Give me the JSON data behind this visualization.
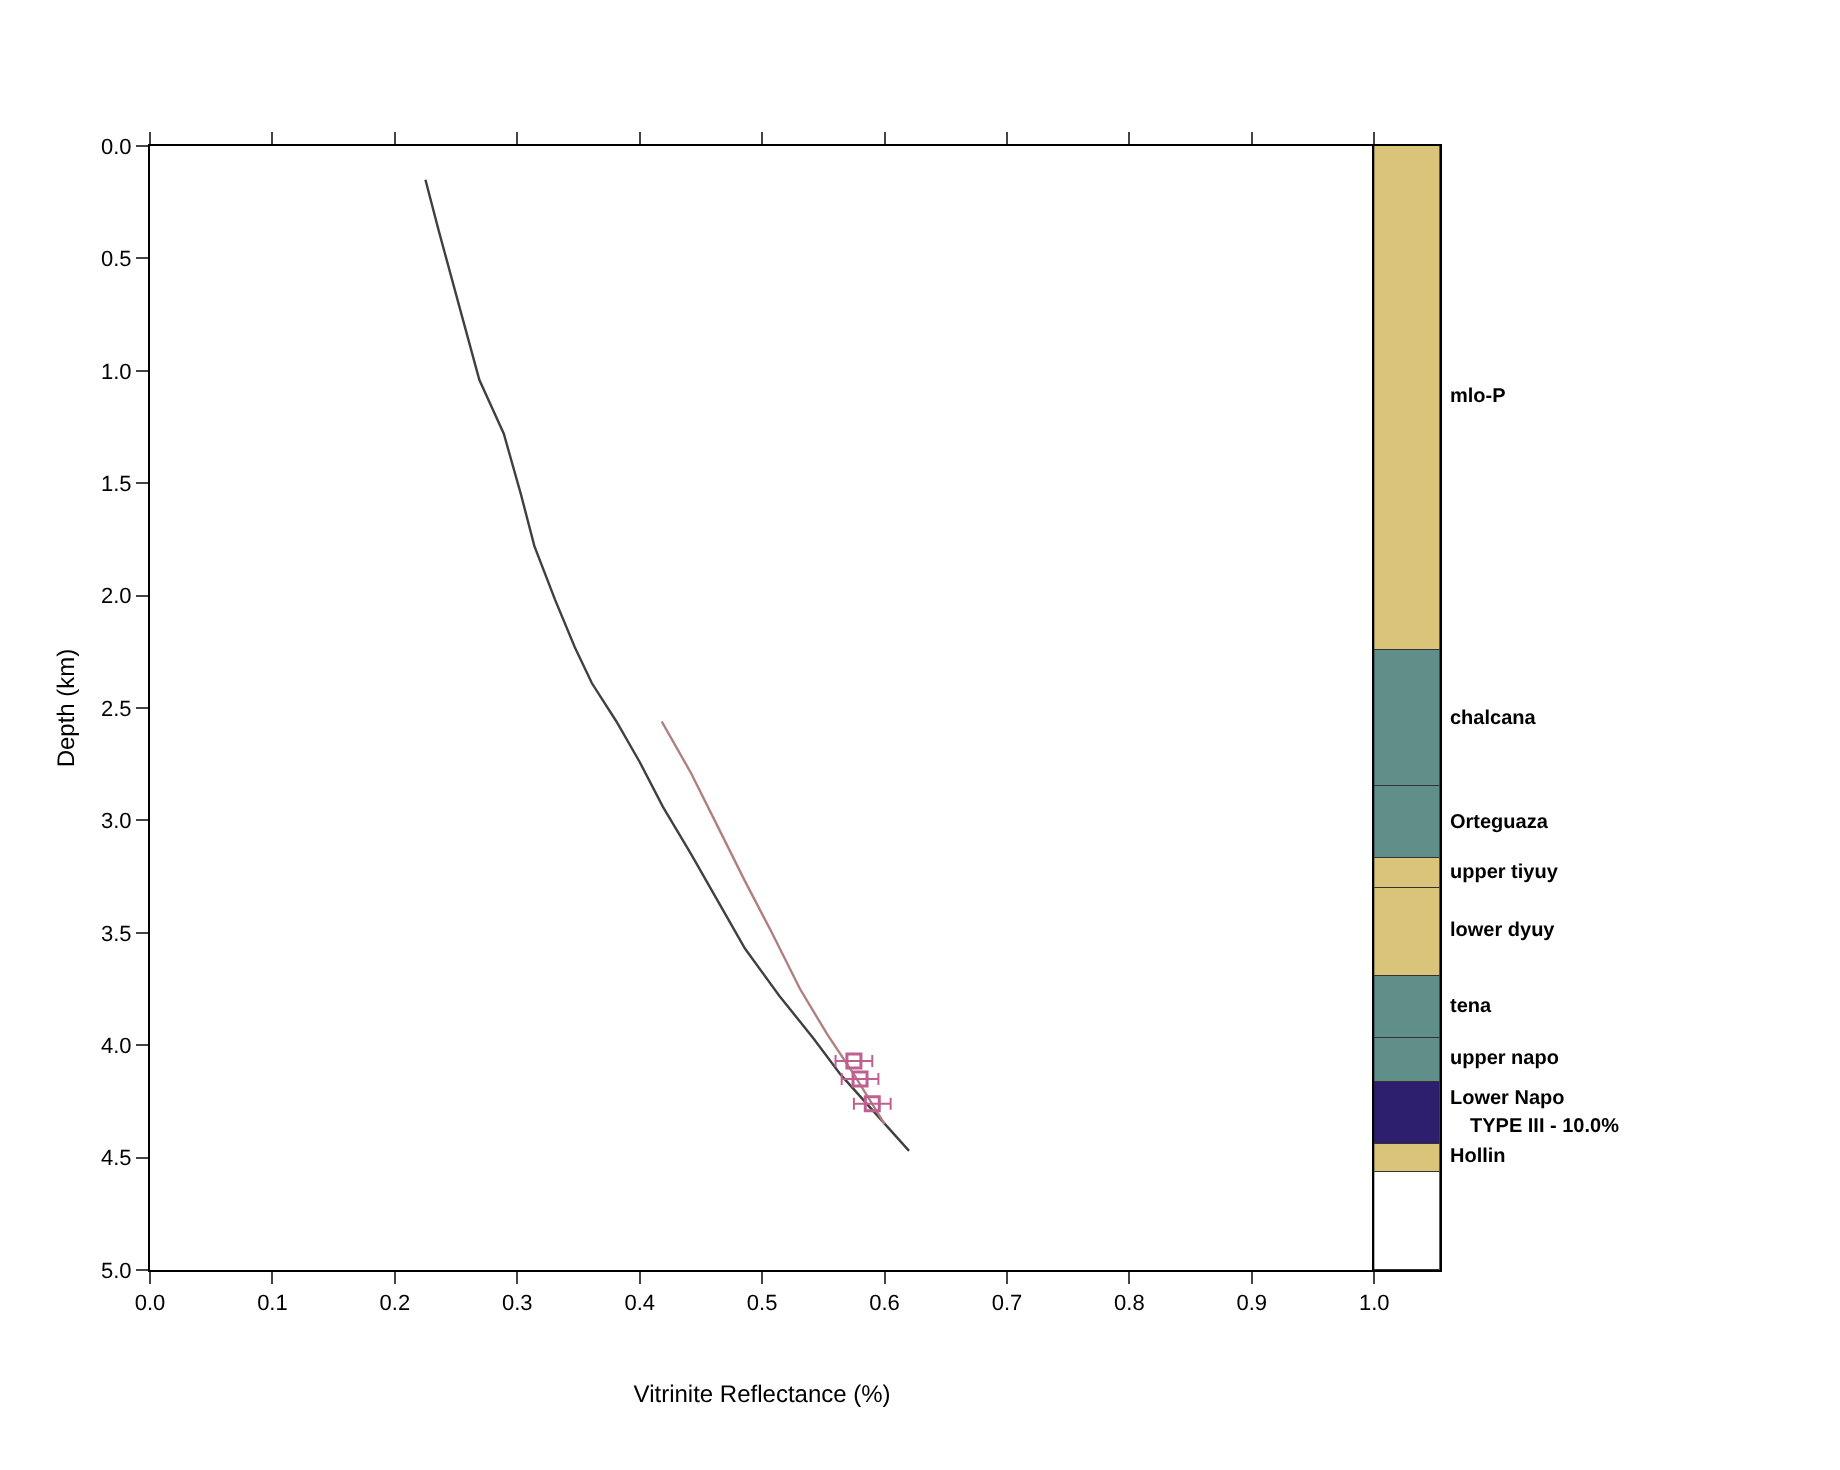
{
  "chart_data": [
    {
      "type": "line",
      "xlabel": "Vitrinite Reflectance (%)",
      "ylabel": "Depth (km)",
      "xlim": [
        0,
        1
      ],
      "ylim": [
        5,
        0
      ],
      "xticks": [
        {
          "value": 0,
          "label": "0.0"
        },
        0.1,
        0.2,
        0.3,
        0.4,
        0.5,
        0.6,
        0.7,
        0.8,
        0.9,
        {
          "value": 1,
          "label": "1.0"
        }
      ],
      "yticks": [
        {
          "value": 0,
          "label": "0.0"
        },
        0.5,
        {
          "value": 1,
          "label": "1.0"
        },
        1.5,
        {
          "value": 2,
          "label": "2.0"
        },
        2.5,
        {
          "value": 3,
          "label": "3.0"
        },
        3.5,
        {
          "value": 4,
          "label": "4.0"
        },
        4.5,
        {
          "value": 5,
          "label": "5.0"
        }
      ],
      "legend": false,
      "line_style": "solid",
      "series": [
        {
          "color": "#404040",
          "x": [
            0.225,
            0.236,
            0.256,
            0.269,
            0.289,
            0.303,
            0.314,
            0.331,
            0.347,
            0.361,
            0.381,
            0.4,
            0.419,
            0.442,
            0.464,
            0.486,
            0.514,
            0.542,
            0.564,
            0.62
          ],
          "values": [
            0.15,
            0.38,
            0.78,
            1.04,
            1.28,
            1.55,
            1.78,
            2.02,
            2.23,
            2.39,
            2.56,
            2.74,
            2.94,
            3.15,
            3.36,
            3.57,
            3.78,
            3.97,
            4.13,
            4.47
          ]
        },
        {
          "color": "#b08080",
          "x": [
            0.418,
            0.442,
            0.464,
            0.486,
            0.508,
            0.531,
            0.553,
            0.575,
            0.6
          ],
          "values": [
            2.56,
            2.79,
            3.03,
            3.27,
            3.5,
            3.75,
            3.95,
            4.13,
            4.35
          ]
        },
        {
          "type": "scatter",
          "marker": "square",
          "color": "#c06090",
          "x": [
            0.575,
            0.58,
            0.59
          ],
          "values": [
            4.07,
            4.15,
            4.26
          ],
          "xerrors": [
            0.015,
            0.015,
            0.015
          ]
        }
      ]
    },
    {
      "type": "bar",
      "stacked": true,
      "categories": [
        null
      ],
      "ylim": [
        5,
        0
      ],
      "tick_labels": false,
      "series": [
        {
          "name": "mlo-P",
          "color": "#d9c47a",
          "values": [
            2.24
          ]
        },
        {
          "name": "chalcana",
          "color": "#5f8f88",
          "values": [
            0.61
          ]
        },
        {
          "name": "Orteguaza",
          "color": "#5f8f88",
          "values": [
            0.32
          ]
        },
        {
          "name": "upper tiyuy",
          "color": "#d9c47a",
          "values": [
            0.13
          ]
        },
        {
          "name": "lower dyuy",
          "color": "#d9c47a",
          "values": [
            0.39
          ]
        },
        {
          "name": "tena",
          "color": "#5f8f88",
          "values": [
            0.28
          ]
        },
        {
          "name": "upper napo",
          "color": "#5f8f88",
          "values": [
            0.19
          ]
        },
        {
          "name": "Lower Napo",
          "color": "#2e1f6e",
          "values": [
            0.28
          ]
        },
        {
          "name": "Hollin",
          "color": "#d9c47a",
          "values": [
            0.12
          ]
        },
        {
          "color": "#ffffff",
          "values": [
            0.44
          ]
        }
      ],
      "annotations": [
        "TYPE III - 10.0%"
      ]
    }
  ]
}
